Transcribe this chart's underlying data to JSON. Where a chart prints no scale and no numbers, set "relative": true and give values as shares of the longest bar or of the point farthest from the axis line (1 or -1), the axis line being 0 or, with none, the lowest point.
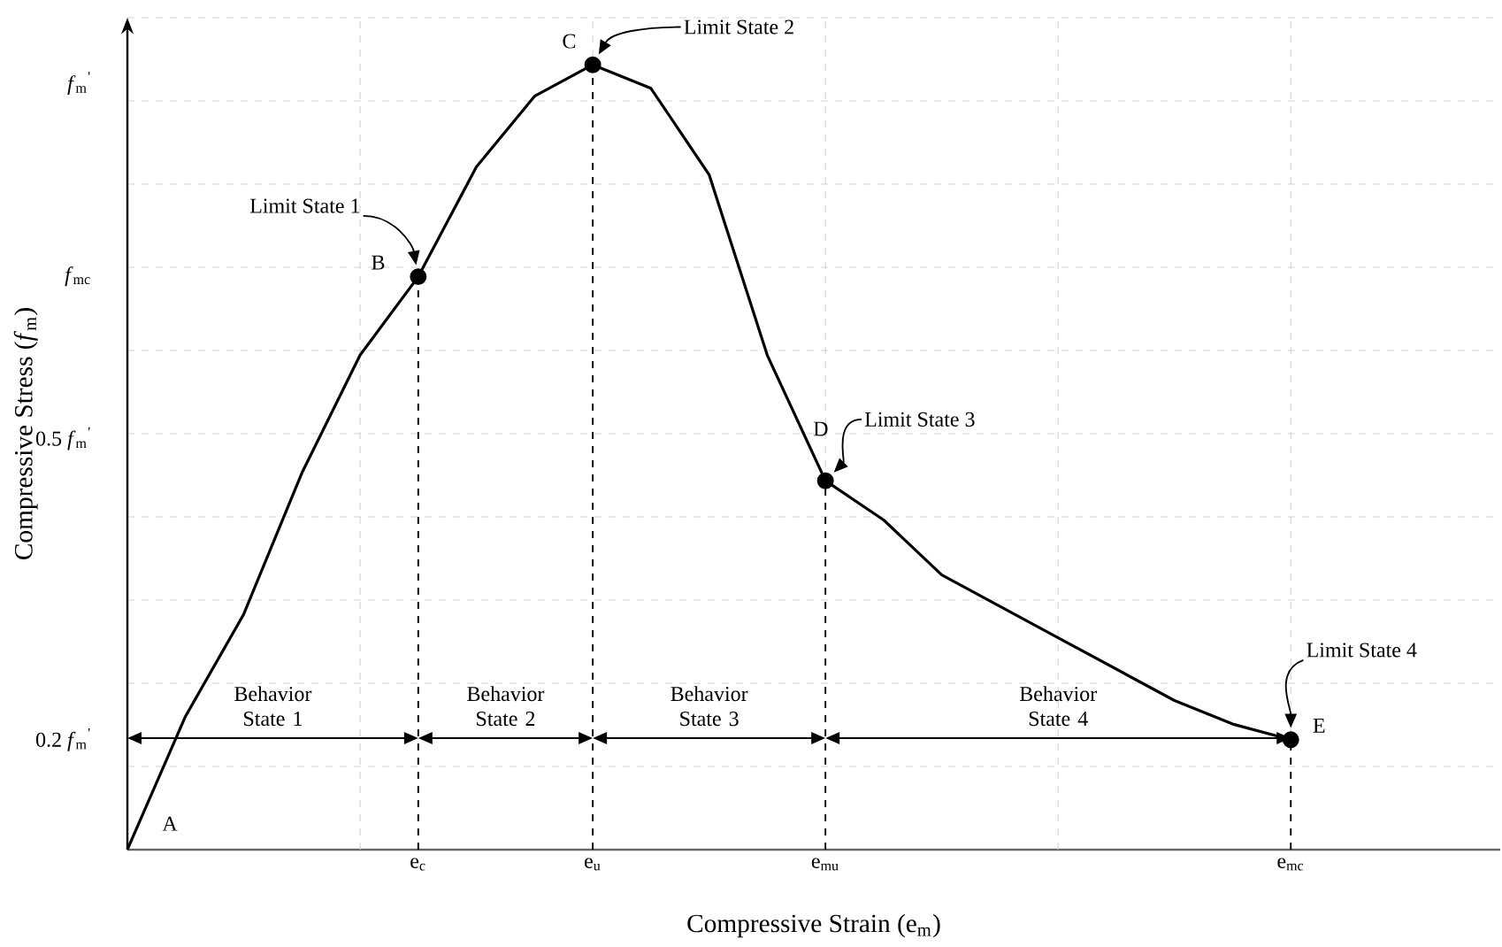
{
  "chart_data": {
    "type": "line",
    "relative": true,
    "xlabel": "Compressive Strain (e$_{m}$)",
    "ylabel": "Compressive Stress (*f*$_{m}$)",
    "categories": [
      null,
      null,
      null,
      null,
      null,
      "e$_{c}$",
      null,
      null,
      "e$_{u}$",
      null,
      null,
      null,
      "e$_{mu}$",
      null,
      null,
      null,
      null,
      null,
      null,
      null,
      "e$_{mc}$"
    ],
    "grid": true,
    "series": [
      {
        "color": "#000000",
        "marker": "none",
        "values": [
          0,
          0.17,
          0.3,
          0.48,
          0.63,
          0.73,
          0.87,
          0.96,
          1.0,
          0.97,
          0.86,
          0.63,
          0.47,
          0.42,
          0.35,
          0.31,
          0.27,
          0.23,
          0.19,
          0.16,
          0.14
        ]
      },
      {
        "type": "lollipop",
        "color": "#000000",
        "marker": "circle",
        "line_style": "dashed",
        "values": [
          null,
          null,
          null,
          null,
          null,
          0.73,
          null,
          null,
          1.0,
          null,
          null,
          null,
          0.47,
          null,
          null,
          null,
          null,
          null,
          null,
          null,
          0.14
        ]
      }
    ],
    "annotations": [
      {
        "text": "B",
        "x": "e$_{c}$",
        "y": 0.73
      },
      {
        "text": "C",
        "x": "e$_{u}$",
        "y": 1.0
      },
      {
        "text": "D",
        "x": "e$_{mu}$",
        "y": 0.47
      },
      {
        "text": "E",
        "x": "e$_{mc}$",
        "y": 0.14
      },
      "A",
      "Limit State 1",
      "Limit State 2",
      "Limit State 3",
      "Limit State 4",
      "Behavior State 1",
      "Behavior State 2",
      "Behavior State 3",
      "Behavior State 4",
      "*f*$_{m}$$^{'}$",
      "*f*$_{mc}$",
      "0.5 *f*$_{m}$$^{'}$",
      "0.2 *f*$_{m}$$^{'}$"
    ]
  }
}
